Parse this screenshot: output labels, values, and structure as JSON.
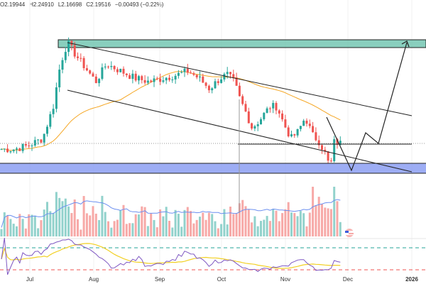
{
  "legend": {
    "open": "O2.19944",
    "high": "H2.24910",
    "low": "L2.16698",
    "close": "C2.19516",
    "change": "−0.00493 (−0.22%)"
  },
  "colors": {
    "up": "#26a69a",
    "down": "#ef5350",
    "volume_up": "#92d2cc",
    "volume_down": "#f7a9a7",
    "ma": "#f5a623",
    "resistance_zone": "#6cc3ae",
    "support_zone": "#8c9ff2",
    "rsi": "#7e57c2",
    "rsi_ma": "#f2d024"
  },
  "chart_data": {
    "type": "candlestick",
    "ylim": [
      1.909,
      3.287
    ],
    "last_price": 2.19516,
    "price_keyframes": [
      [
        0,
        2.152
      ],
      [
        20,
        2.152
      ],
      [
        40,
        2.179
      ],
      [
        60,
        2.233
      ],
      [
        75,
        2.476
      ],
      [
        85,
        2.8
      ],
      [
        95,
        2.963
      ],
      [
        105,
        2.881
      ],
      [
        120,
        2.773
      ],
      [
        135,
        2.665
      ],
      [
        150,
        2.8
      ],
      [
        170,
        2.746
      ],
      [
        190,
        2.692
      ],
      [
        210,
        2.665
      ],
      [
        230,
        2.692
      ],
      [
        250,
        2.719
      ],
      [
        265,
        2.746
      ],
      [
        280,
        2.692
      ],
      [
        295,
        2.611
      ],
      [
        310,
        2.692
      ],
      [
        320,
        2.719
      ],
      [
        330,
        2.665
      ],
      [
        338,
        2.53
      ],
      [
        345,
        2.449
      ],
      [
        355,
        2.314
      ],
      [
        365,
        2.368
      ],
      [
        380,
        2.476
      ],
      [
        390,
        2.476
      ],
      [
        400,
        2.341
      ],
      [
        410,
        2.233
      ],
      [
        420,
        2.287
      ],
      [
        430,
        2.395
      ],
      [
        440,
        2.26
      ],
      [
        450,
        2.206
      ],
      [
        460,
        2.098
      ],
      [
        465,
        1.99
      ],
      [
        470,
        2.206
      ],
      [
        480,
        2.195
      ]
    ],
    "resistance_zone": [
      2.9,
      2.96
    ],
    "support_zone": [
      1.97,
      2.05
    ],
    "x_ticks": [
      "Jul",
      "Aug",
      "Sep",
      "Oct",
      "Nov",
      "Dec",
      "2026"
    ],
    "panels": [
      "price",
      "volume",
      "rsi"
    ]
  }
}
